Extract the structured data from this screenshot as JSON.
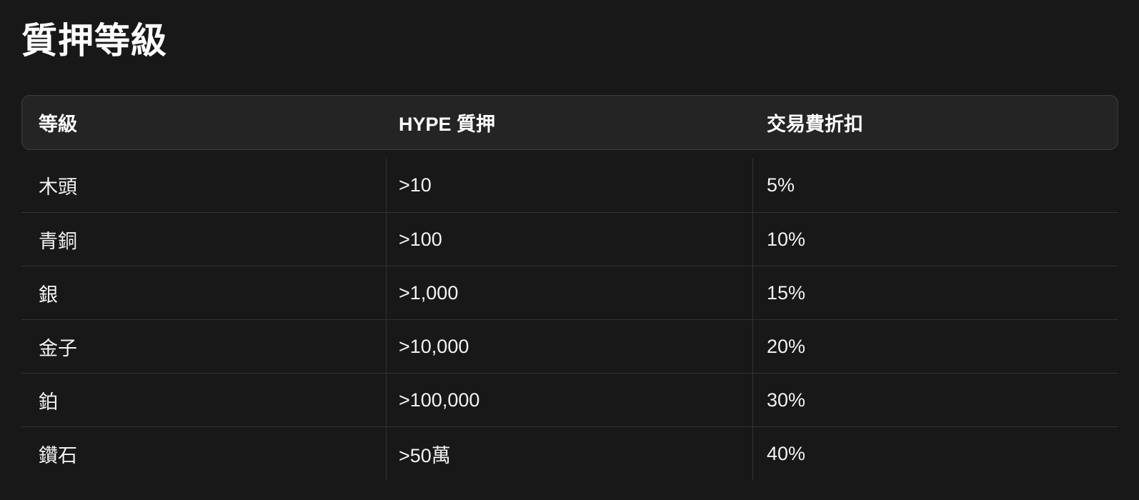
{
  "title": "質押等級",
  "table": {
    "columns": {
      "tier": "等級",
      "stake": "HYPE 質押",
      "discount": "交易費折扣"
    },
    "rows": [
      {
        "tier": "木頭",
        "stake": ">10",
        "discount": "5%"
      },
      {
        "tier": "青銅",
        "stake": ">100",
        "discount": "10%"
      },
      {
        "tier": "銀",
        "stake": ">1,000",
        "discount": "15%"
      },
      {
        "tier": "金子",
        "stake": ">10,000",
        "discount": "20%"
      },
      {
        "tier": "鉑",
        "stake": ">100,000",
        "discount": "30%"
      },
      {
        "tier": "鑽石",
        "stake": ">50萬",
        "discount": "40%"
      }
    ]
  },
  "colors": {
    "page_background": "#181818",
    "header_background": "#242424",
    "header_border": "#3d3d3d",
    "row_separator": "#313131",
    "column_divider": "#323232",
    "title_text": "#ffffff",
    "cell_text": "#f2f2f2"
  }
}
